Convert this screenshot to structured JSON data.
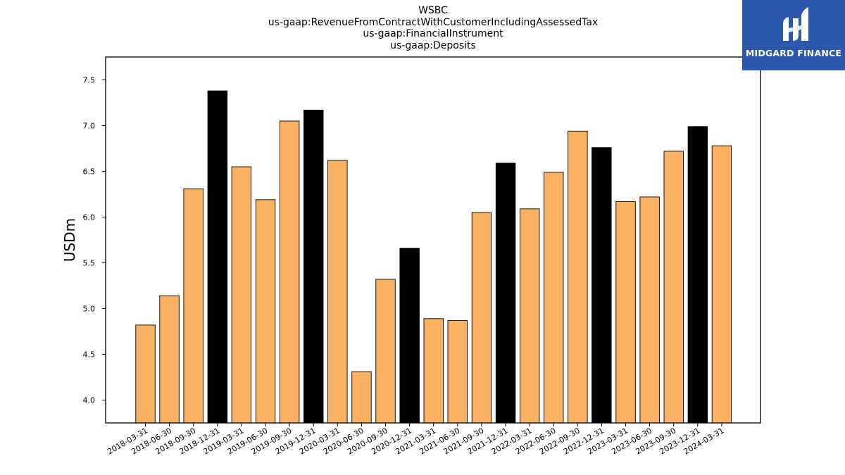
{
  "chart_data": {
    "type": "bar",
    "title_lines": [
      "WSBC",
      "us-gaap:RevenueFromContractWithCustomerIncludingAssessedTax",
      "us-gaap:FinancialInstrument",
      "us-gaap:Deposits"
    ],
    "ylabel": "USDm",
    "xlabel": "",
    "ylim": [
      3.75,
      7.75
    ],
    "yticks": [
      "4.0",
      "4.5",
      "5.0",
      "5.5",
      "6.0",
      "6.5",
      "7.0",
      "7.5"
    ],
    "categories": [
      "2018-03-31",
      "2018-06-30",
      "2018-09-30",
      "2018-12-31",
      "2019-03-31",
      "2019-06-30",
      "2019-09-30",
      "2019-12-31",
      "2020-03-31",
      "2020-06-30",
      "2020-09-30",
      "2020-12-31",
      "2021-03-31",
      "2021-06-30",
      "2021-09-30",
      "2021-12-31",
      "2022-03-31",
      "2022-06-30",
      "2022-09-30",
      "2022-12-31",
      "2023-03-31",
      "2023-06-30",
      "2023-09-30",
      "2023-12-31",
      "2024-03-31"
    ],
    "values": [
      4.82,
      5.14,
      6.31,
      7.38,
      6.55,
      6.19,
      7.05,
      7.17,
      6.62,
      4.31,
      5.32,
      5.66,
      4.89,
      4.87,
      6.05,
      6.59,
      6.09,
      6.49,
      6.94,
      6.76,
      6.17,
      6.22,
      6.72,
      6.99,
      6.78
    ],
    "year_end_highlight": [
      false,
      false,
      false,
      true,
      false,
      false,
      false,
      true,
      false,
      false,
      false,
      true,
      false,
      false,
      false,
      true,
      false,
      false,
      false,
      true,
      false,
      false,
      false,
      true,
      false
    ],
    "colors": {
      "bar": "#fbb162",
      "year_end_bar": "#000000",
      "edge": "#000000"
    },
    "grid": false,
    "legend": "none"
  },
  "logo": {
    "text": "MIDGARD FINANCE",
    "background": "#2b57ad"
  }
}
